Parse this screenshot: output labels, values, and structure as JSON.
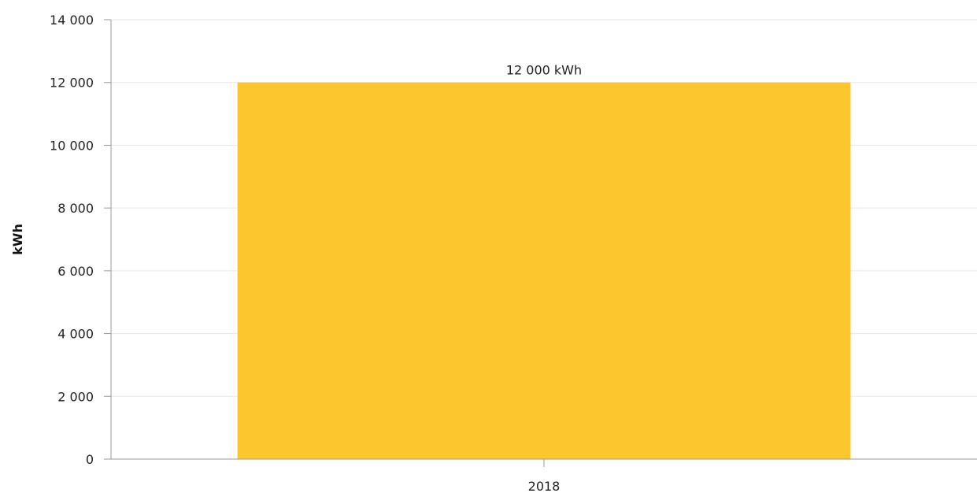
{
  "chart_data": {
    "type": "bar",
    "categories": [
      "2018"
    ],
    "values": [
      12000
    ],
    "data_labels": [
      "12 000 kWh"
    ],
    "title": "",
    "xlabel": "",
    "ylabel": "kWh",
    "ylim": [
      0,
      14000
    ],
    "y_ticks": [
      0,
      2000,
      4000,
      6000,
      8000,
      10000,
      12000,
      14000
    ],
    "y_tick_labels": [
      "0",
      "2 000",
      "4 000",
      "6 000",
      "8 000",
      "10 000",
      "12 000",
      "14 000"
    ],
    "grid": true,
    "legend": "none",
    "bar_color": "#fcc62d",
    "grid_color": "#e6e6e6",
    "axis_color": "#999999"
  }
}
